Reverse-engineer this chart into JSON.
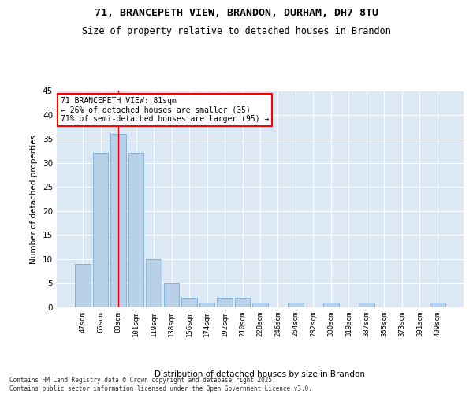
{
  "title": "71, BRANCEPETH VIEW, BRANDON, DURHAM, DH7 8TU",
  "subtitle": "Size of property relative to detached houses in Brandon",
  "xlabel": "Distribution of detached houses by size in Brandon",
  "ylabel": "Number of detached properties",
  "categories": [
    "47sqm",
    "65sqm",
    "83sqm",
    "101sqm",
    "119sqm",
    "138sqm",
    "156sqm",
    "174sqm",
    "192sqm",
    "210sqm",
    "228sqm",
    "246sqm",
    "264sqm",
    "282sqm",
    "300sqm",
    "319sqm",
    "337sqm",
    "355sqm",
    "373sqm",
    "391sqm",
    "409sqm"
  ],
  "values": [
    9,
    32,
    36,
    32,
    10,
    5,
    2,
    1,
    2,
    2,
    1,
    0,
    1,
    0,
    1,
    0,
    1,
    0,
    0,
    0,
    1
  ],
  "bar_color": "#b8d0e8",
  "bar_edge_color": "#7aadd4",
  "grid_color": "#ffffff",
  "background_color": "#dce9f5",
  "vline_x": 2,
  "vline_color": "red",
  "annotation_text": "71 BRANCEPETH VIEW: 81sqm\n← 26% of detached houses are smaller (35)\n71% of semi-detached houses are larger (95) →",
  "annotation_box_color": "white",
  "annotation_box_edgecolor": "red",
  "ylim": [
    0,
    45
  ],
  "yticks": [
    0,
    5,
    10,
    15,
    20,
    25,
    30,
    35,
    40,
    45
  ],
  "footer1": "Contains HM Land Registry data © Crown copyright and database right 2025.",
  "footer2": "Contains public sector information licensed under the Open Government Licence v3.0."
}
